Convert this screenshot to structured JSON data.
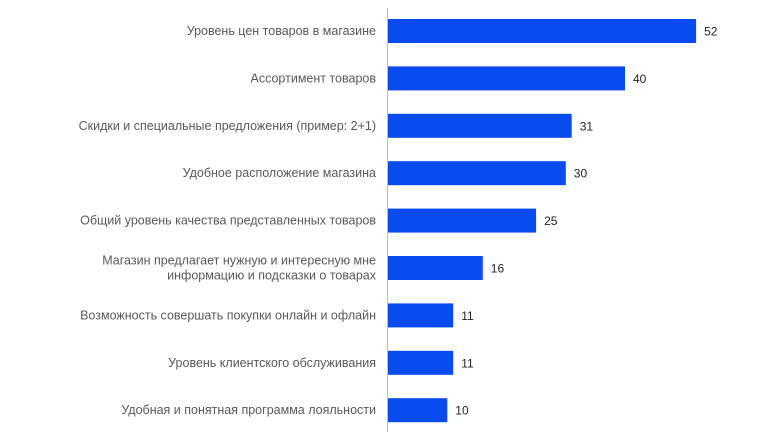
{
  "chart_data": {
    "type": "bar",
    "orientation": "horizontal",
    "categories": [
      [
        "Уровень цен товаров в магазине"
      ],
      [
        "Ассортимент товаров"
      ],
      [
        "Скидки и специальные предложения (пример: 2+1)"
      ],
      [
        "Удобное расположение магазина"
      ],
      [
        "Общий уровень качества представленных товаров"
      ],
      [
        "Магазин предлагает нужную и интересную мне",
        "информацию и подсказки о товарах"
      ],
      [
        "Возможность совершать покупки онлайн и офлайн"
      ],
      [
        "Уровень клиентского обслуживания"
      ],
      [
        "Удобная и понятная программа лояльности"
      ]
    ],
    "values": [
      52,
      40,
      31,
      30,
      25,
      16,
      11,
      11,
      10
    ],
    "xlim": [
      0,
      60
    ],
    "grid": false,
    "bar_color": "#0A4BF0",
    "axis_color": "#BFBFBF"
  }
}
